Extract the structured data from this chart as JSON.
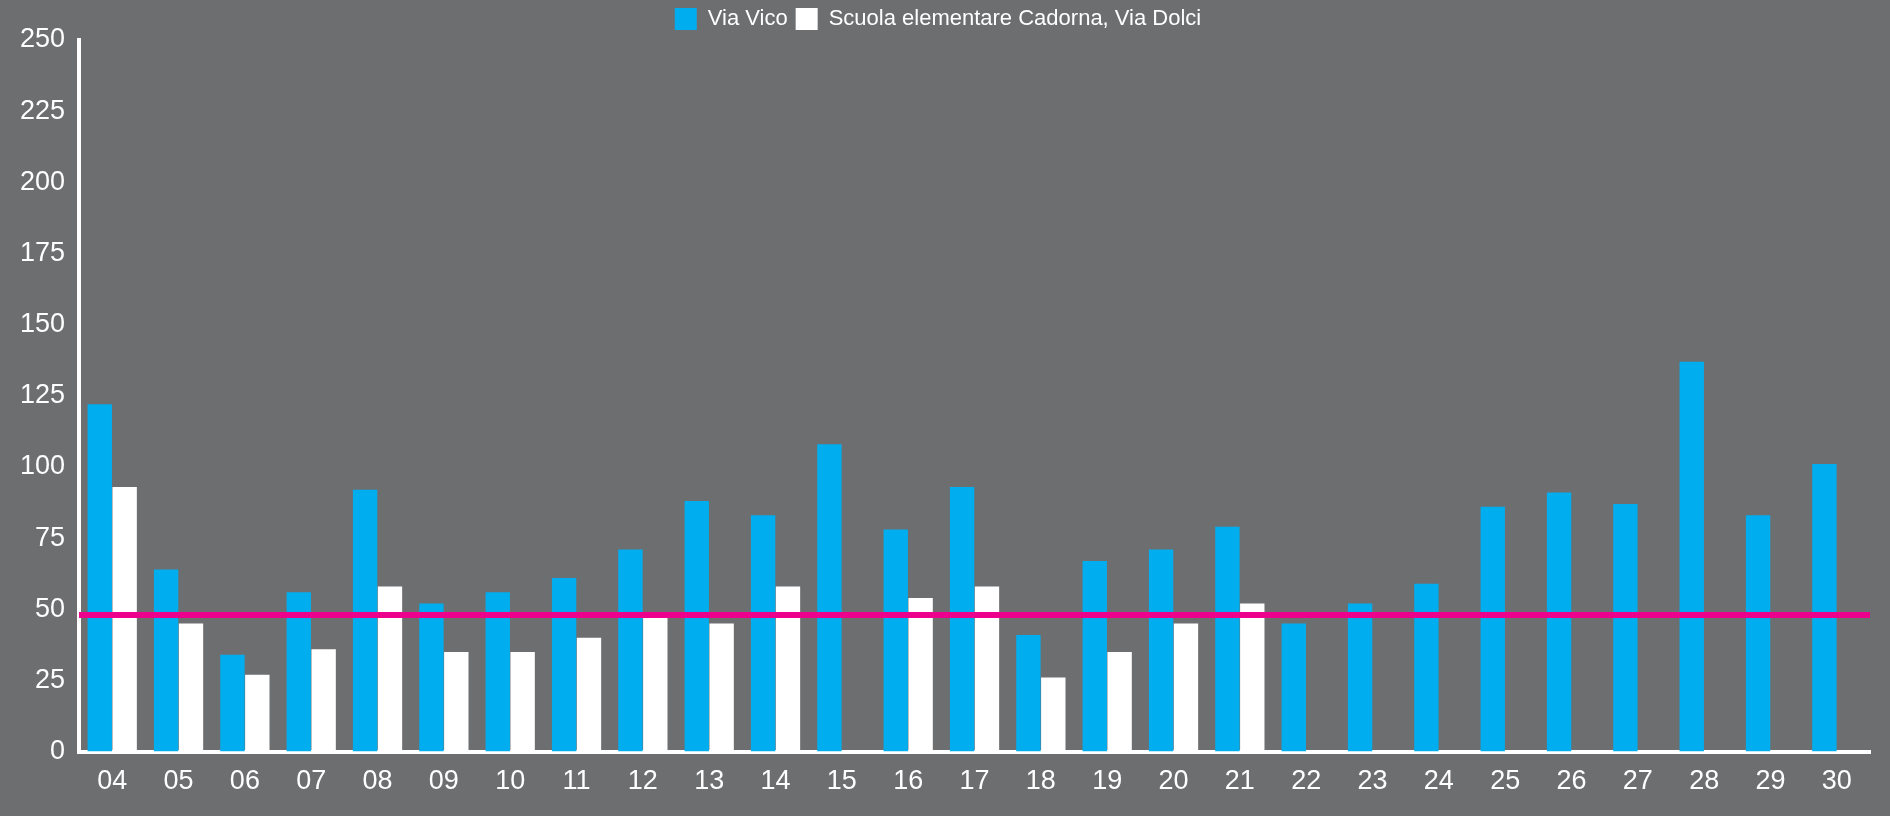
{
  "chart_data": {
    "type": "bar",
    "categories": [
      "04",
      "05",
      "06",
      "07",
      "08",
      "09",
      "10",
      "11",
      "12",
      "13",
      "14",
      "15",
      "16",
      "17",
      "18",
      "19",
      "20",
      "21",
      "22",
      "23",
      "24",
      "25",
      "26",
      "27",
      "28",
      "29",
      "30"
    ],
    "series": [
      {
        "name": "Via Vico",
        "color": "#00aeef",
        "values": [
          122,
          64,
          34,
          56,
          92,
          52,
          56,
          61,
          71,
          88,
          83,
          108,
          78,
          93,
          41,
          67,
          71,
          79,
          45,
          52,
          59,
          86,
          91,
          87,
          137,
          83,
          101
        ]
      },
      {
        "name": "Scuola elementare Cadorna, Via Dolci",
        "color": "#ffffff",
        "values": [
          93,
          45,
          27,
          36,
          58,
          35,
          35,
          40,
          47,
          45,
          58,
          null,
          54,
          58,
          26,
          35,
          45,
          52,
          null,
          null,
          null,
          null,
          null,
          null,
          null,
          null,
          null
        ]
      }
    ],
    "ylim": [
      0,
      250
    ],
    "yticks": [
      0,
      25,
      50,
      75,
      100,
      125,
      150,
      175,
      200,
      225,
      250
    ],
    "grid": false,
    "legend": "top",
    "ref_lines": [
      {
        "axis": "y",
        "value": 48,
        "color": "#ec008c"
      }
    ]
  }
}
